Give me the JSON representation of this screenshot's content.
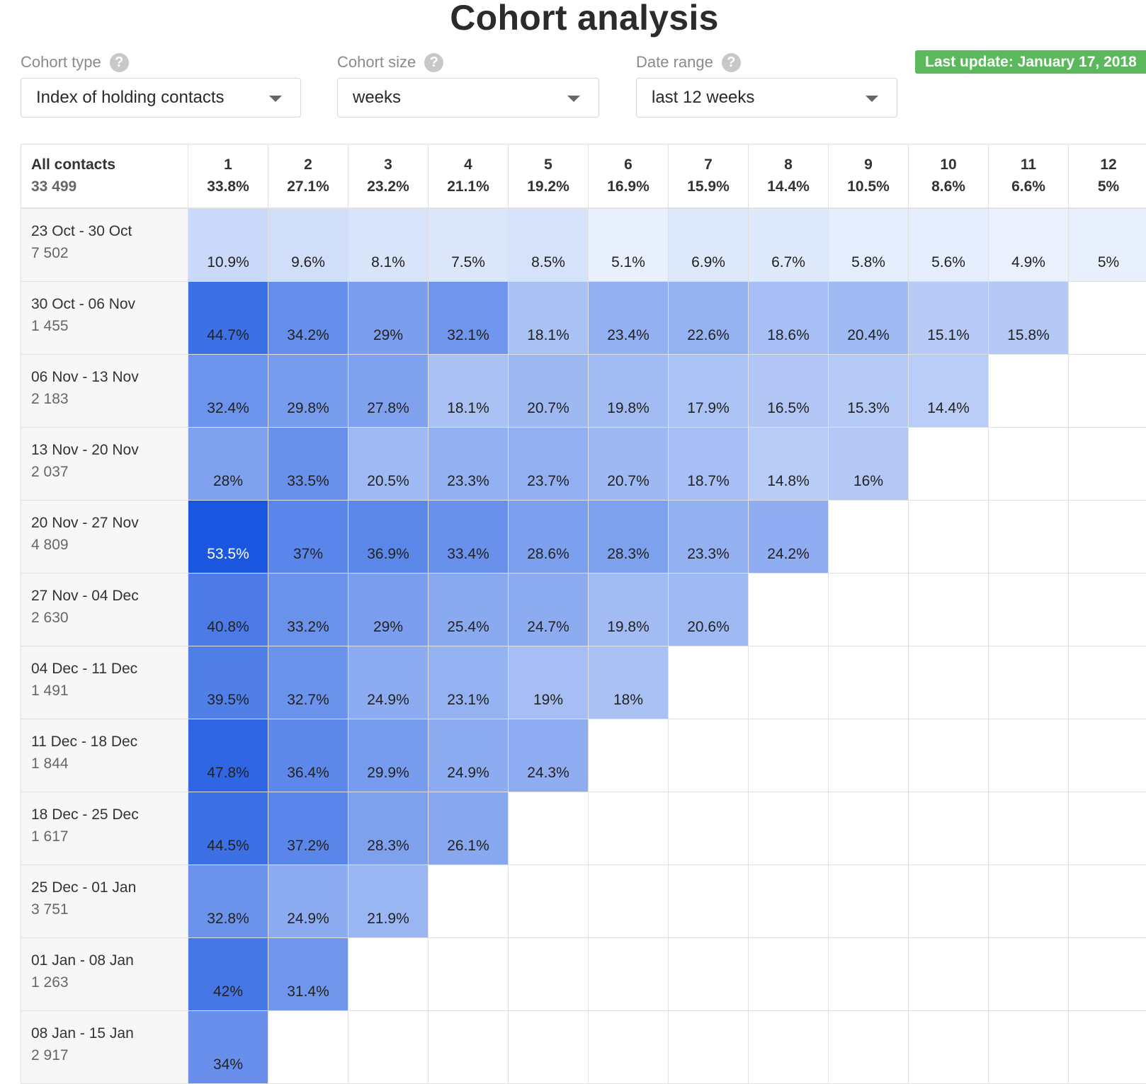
{
  "page": {
    "title": "Cohort analysis"
  },
  "controls": {
    "cohort_type": {
      "label": "Cohort type",
      "value": "Index of holding contacts"
    },
    "cohort_size": {
      "label": "Cohort size",
      "value": "weeks"
    },
    "date_range": {
      "label": "Date range",
      "value": "last 12 weeks"
    },
    "help_glyph": "?",
    "last_update": "Last update: January 17, 2018"
  },
  "colors": {
    "cell_light": "#eaf1fd",
    "cell_dark": "#1a56e0",
    "badge": "#5cb85c"
  },
  "chart_data": {
    "type": "heatmap",
    "title": "Cohort analysis",
    "corner": {
      "label": "All contacts",
      "count": "33 499"
    },
    "columns": [
      {
        "label": "1",
        "value": "33.8%"
      },
      {
        "label": "2",
        "value": "27.1%"
      },
      {
        "label": "3",
        "value": "23.2%"
      },
      {
        "label": "4",
        "value": "21.1%"
      },
      {
        "label": "5",
        "value": "19.2%"
      },
      {
        "label": "6",
        "value": "16.9%"
      },
      {
        "label": "7",
        "value": "15.9%"
      },
      {
        "label": "8",
        "value": "14.4%"
      },
      {
        "label": "9",
        "value": "10.5%"
      },
      {
        "label": "10",
        "value": "8.6%"
      },
      {
        "label": "11",
        "value": "6.6%"
      },
      {
        "label": "12",
        "value": "5%"
      }
    ],
    "rows": [
      {
        "period": "23 Oct - 30 Oct",
        "count": "7 502",
        "values": [
          10.9,
          9.6,
          8.1,
          7.5,
          8.5,
          5.1,
          6.9,
          6.7,
          5.8,
          5.6,
          4.9,
          5
        ]
      },
      {
        "period": "30 Oct - 06 Nov",
        "count": "1 455",
        "values": [
          44.7,
          34.2,
          29,
          32.1,
          18.1,
          23.4,
          22.6,
          18.6,
          20.4,
          15.1,
          15.8
        ]
      },
      {
        "period": "06 Nov - 13 Nov",
        "count": "2 183",
        "values": [
          32.4,
          29.8,
          27.8,
          18.1,
          20.7,
          19.8,
          17.9,
          16.5,
          15.3,
          14.4
        ]
      },
      {
        "period": "13 Nov - 20 Nov",
        "count": "2 037",
        "values": [
          28,
          33.5,
          20.5,
          23.3,
          23.7,
          20.7,
          18.7,
          14.8,
          16
        ]
      },
      {
        "period": "20 Nov - 27 Nov",
        "count": "4 809",
        "values": [
          53.5,
          37,
          36.9,
          33.4,
          28.6,
          28.3,
          23.3,
          24.2
        ]
      },
      {
        "period": "27 Nov - 04 Dec",
        "count": "2 630",
        "values": [
          40.8,
          33.2,
          29,
          25.4,
          24.7,
          19.8,
          20.6
        ]
      },
      {
        "period": "04 Dec - 11 Dec",
        "count": "1 491",
        "values": [
          39.5,
          32.7,
          24.9,
          23.1,
          19,
          18
        ]
      },
      {
        "period": "11 Dec - 18 Dec",
        "count": "1 844",
        "values": [
          47.8,
          36.4,
          29.9,
          24.9,
          24.3
        ]
      },
      {
        "period": "18 Dec - 25 Dec",
        "count": "1 617",
        "values": [
          44.5,
          37.2,
          28.3,
          26.1
        ]
      },
      {
        "period": "25 Dec - 01 Jan",
        "count": "3 751",
        "values": [
          32.8,
          24.9,
          21.9
        ]
      },
      {
        "period": "01 Jan - 08 Jan",
        "count": "1 263",
        "values": [
          42,
          31.4
        ]
      },
      {
        "period": "08 Jan - 15 Jan",
        "count": "2 917",
        "values": [
          34
        ]
      }
    ],
    "value_suffix": "%"
  }
}
